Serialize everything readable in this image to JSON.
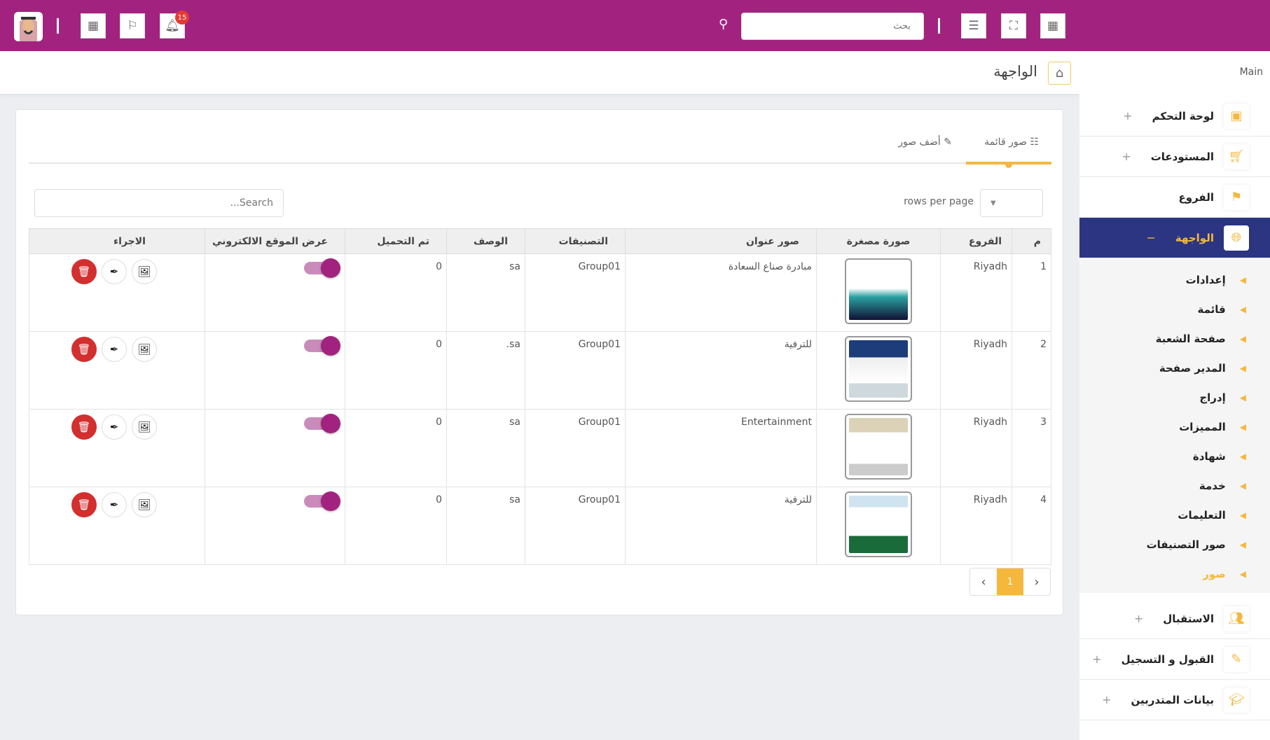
{
  "colors": {
    "header": "#a2237f",
    "sidebar_active": "#2c3581",
    "accent": "#f5b83d",
    "danger": "#d32f2f"
  },
  "topbar": {
    "search_placeholder": "بحث",
    "notification_count": "15",
    "icons": [
      "avatar",
      "calendar-icon",
      "flag-icon",
      "bell-icon",
      "search-icon",
      "menu-icon",
      "fullscreen-icon",
      "grid-icon"
    ]
  },
  "breadcrumb": {
    "title": "الواجهة"
  },
  "sidebar": {
    "section": "Main",
    "items": [
      {
        "label": "لوحة التحكم",
        "icon": "dashboard-icon",
        "expand": "+"
      },
      {
        "label": "المستودعات",
        "icon": "cart-icon",
        "expand": "+"
      },
      {
        "label": "الفروع",
        "icon": "signpost-icon",
        "expand": ""
      },
      {
        "label": "الواجهة",
        "icon": "globe-icon",
        "expand": "−",
        "active": true
      }
    ],
    "sub_items": [
      "إعدادات",
      "قائمة",
      "صفحة الشعبة",
      "المدير صفحة",
      "إدراج",
      "المميزات",
      "شهادة",
      "خدمة",
      "التعليمات",
      "صور التصنيفات",
      "صور"
    ],
    "items_after": [
      {
        "label": "الاستقبال",
        "icon": "users-icon",
        "expand": "+"
      },
      {
        "label": "القبول و التسجيل",
        "icon": "edit-icon",
        "expand": "+"
      },
      {
        "label": "بيانات المتدربين",
        "icon": "graduation-icon",
        "expand": "+"
      }
    ]
  },
  "tabs": [
    {
      "label": "صور قائمة",
      "icon": "list-icon",
      "active": true
    },
    {
      "label": "أضف صور",
      "icon": "edit-icon"
    }
  ],
  "table_controls": {
    "rows_per_page": "rows per page",
    "search_placeholder": "Search..."
  },
  "table": {
    "headers": [
      "م",
      "الفروع",
      "صورة مصغرة",
      "صور عنوان",
      "التصنيفات",
      "الوصف",
      "تم التحميل",
      "عرض الموقع الالكتروني",
      "الاجراء"
    ],
    "rows": [
      {
        "num": "1",
        "branch": "Riyadh",
        "title": "مبادرة صناع السعادة",
        "category": "Group01",
        "desc": "sa",
        "uploaded": "0",
        "visible": true
      },
      {
        "num": "2",
        "branch": "Riyadh",
        "title": "للترفية",
        "category": "Group01",
        "desc": "sa.",
        "uploaded": "0",
        "visible": true
      },
      {
        "num": "3",
        "branch": "Riyadh",
        "title": "Entertainment",
        "category": "Group01",
        "desc": "sa",
        "uploaded": "0",
        "visible": true
      },
      {
        "num": "4",
        "branch": "Riyadh",
        "title": "للترفية",
        "category": "Group01",
        "desc": "sa",
        "uploaded": "0",
        "visible": true
      }
    ]
  },
  "pagination": {
    "current": "1"
  }
}
